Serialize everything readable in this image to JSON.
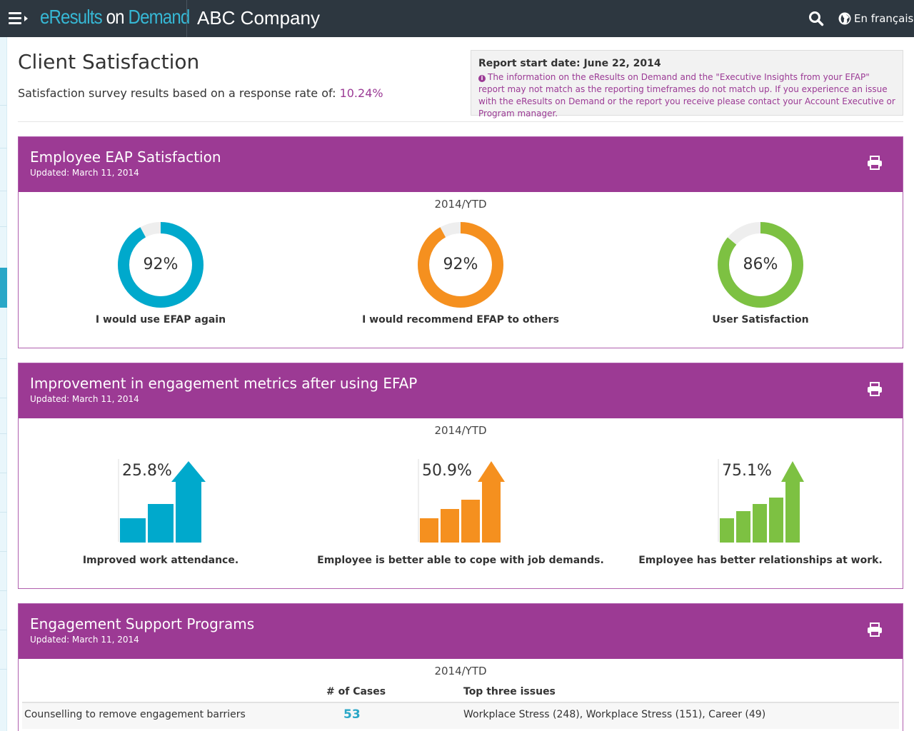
{
  "header": {
    "brand_part1": "eResults",
    "brand_part2": "on",
    "brand_part3": "Demand",
    "company": "ABC Company",
    "language_link": "En français"
  },
  "page": {
    "title": "Client Satisfaction",
    "subtitle_prefix": "Satisfaction survey results based on a response rate of:",
    "response_rate": "10.24%",
    "report_start": "Report start date: June 22, 2014",
    "info_note": "The information on the eResults on Demand and the \"Executive Insights from your EFAP\" report may not match as the reporting timeframes do not match up. If you experience an issue with the eResults on Demand or the report you receive please contact your Account Executive or Program manager."
  },
  "satisfaction": {
    "title": "Employee EAP Satisfaction",
    "updated": "Updated: March 11, 2014",
    "period": "2014/YTD",
    "donuts": [
      {
        "label": "I would use EFAP again",
        "value": 92,
        "display": "92%",
        "color": "#00a9cc"
      },
      {
        "label": "I would recommend EFAP to others",
        "value": 92,
        "display": "92%",
        "color": "#f5901f"
      },
      {
        "label": "User Satisfaction",
        "value": 86,
        "display": "86%",
        "color": "#7dc142"
      }
    ]
  },
  "engagement": {
    "title": "Improvement in engagement metrics after using EFAP",
    "updated": "Updated: March 11, 2014",
    "period": "2014/YTD",
    "metrics": [
      {
        "label": "Improved work attendance.",
        "value": 25.8,
        "display": "25.8%",
        "bars": 3,
        "color": "#00a9cc"
      },
      {
        "label": "Employee is better able to cope with job demands.",
        "value": 50.9,
        "display": "50.9%",
        "bars": 4,
        "color": "#f5901f"
      },
      {
        "label": "Employee has better relationships at work.",
        "value": 75.1,
        "display": "75.1%",
        "bars": 5,
        "color": "#7dc142"
      }
    ]
  },
  "programs": {
    "title": "Engagement Support Programs",
    "updated": "Updated: March 11, 2014",
    "period": "2014/YTD",
    "col_cases": "# of Cases",
    "col_issues": "Top three issues",
    "rows": [
      {
        "program": "Counselling to remove engagement barriers",
        "cases": "53",
        "issues": "Workplace Stress (248), Workplace Stress (151), Career (49)"
      }
    ]
  },
  "colors": {
    "topbar": "#2d3740",
    "brand": "#36b7d4",
    "panel": "#9c3a94",
    "accent_purple": "#9b3a95",
    "track": "#eeeeee"
  }
}
